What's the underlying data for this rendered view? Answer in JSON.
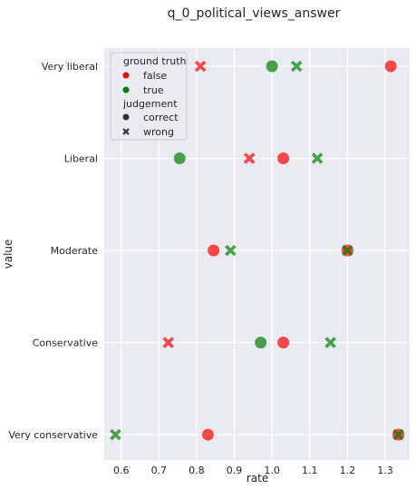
{
  "chart_data": {
    "type": "scatter",
    "title": "q_0_political_views_answer",
    "xlabel": "rate",
    "ylabel": "value",
    "xlim": [
      0.555,
      1.365
    ],
    "x_ticks": [
      "0.6",
      "0.7",
      "0.8",
      "0.9",
      "1.0",
      "1.1",
      "1.2",
      "1.3"
    ],
    "categories": [
      "Very liberal",
      "Liberal",
      "Moderate",
      "Conservative",
      "Very conservative"
    ],
    "grid": true,
    "legend_position": "top-left",
    "legend": {
      "hue_title": "ground truth",
      "hue_items": [
        {
          "label": "false",
          "color": "#ff0000"
        },
        {
          "label": "true",
          "color": "#008000"
        }
      ],
      "style_title": "judgement",
      "style_items": [
        {
          "label": "correct",
          "marker": "circle"
        },
        {
          "label": "wrong",
          "marker": "x"
        }
      ]
    },
    "points": [
      {
        "category": "Very liberal",
        "x": 0.81,
        "ground_truth": "false",
        "judgement": "wrong"
      },
      {
        "category": "Very liberal",
        "x": 1.0,
        "ground_truth": "true",
        "judgement": "correct"
      },
      {
        "category": "Very liberal",
        "x": 1.065,
        "ground_truth": "true",
        "judgement": "wrong"
      },
      {
        "category": "Very liberal",
        "x": 1.315,
        "ground_truth": "false",
        "judgement": "correct"
      },
      {
        "category": "Liberal",
        "x": 0.755,
        "ground_truth": "true",
        "judgement": "correct"
      },
      {
        "category": "Liberal",
        "x": 0.94,
        "ground_truth": "false",
        "judgement": "wrong"
      },
      {
        "category": "Liberal",
        "x": 1.03,
        "ground_truth": "false",
        "judgement": "correct"
      },
      {
        "category": "Liberal",
        "x": 1.12,
        "ground_truth": "true",
        "judgement": "wrong"
      },
      {
        "category": "Moderate",
        "x": 0.845,
        "ground_truth": "false",
        "judgement": "correct"
      },
      {
        "category": "Moderate",
        "x": 0.89,
        "ground_truth": "true",
        "judgement": "wrong"
      },
      {
        "category": "Moderate",
        "x": 1.2,
        "ground_truth": "false",
        "judgement": "correct"
      },
      {
        "category": "Moderate",
        "x": 1.2,
        "ground_truth": "true",
        "judgement": "wrong"
      },
      {
        "category": "Conservative",
        "x": 0.725,
        "ground_truth": "false",
        "judgement": "wrong"
      },
      {
        "category": "Conservative",
        "x": 0.97,
        "ground_truth": "true",
        "judgement": "correct"
      },
      {
        "category": "Conservative",
        "x": 1.03,
        "ground_truth": "false",
        "judgement": "correct"
      },
      {
        "category": "Conservative",
        "x": 1.155,
        "ground_truth": "true",
        "judgement": "wrong"
      },
      {
        "category": "Very conservative",
        "x": 0.585,
        "ground_truth": "true",
        "judgement": "wrong"
      },
      {
        "category": "Very conservative",
        "x": 0.83,
        "ground_truth": "false",
        "judgement": "correct"
      },
      {
        "category": "Very conservative",
        "x": 1.335,
        "ground_truth": "false",
        "judgement": "correct"
      },
      {
        "category": "Very conservative",
        "x": 1.335,
        "ground_truth": "true",
        "judgement": "wrong"
      }
    ],
    "colors": {
      "false": "#ff0000",
      "true": "#008000",
      "plot_background": "#eaeaf2",
      "grid": "#ffffff"
    }
  }
}
